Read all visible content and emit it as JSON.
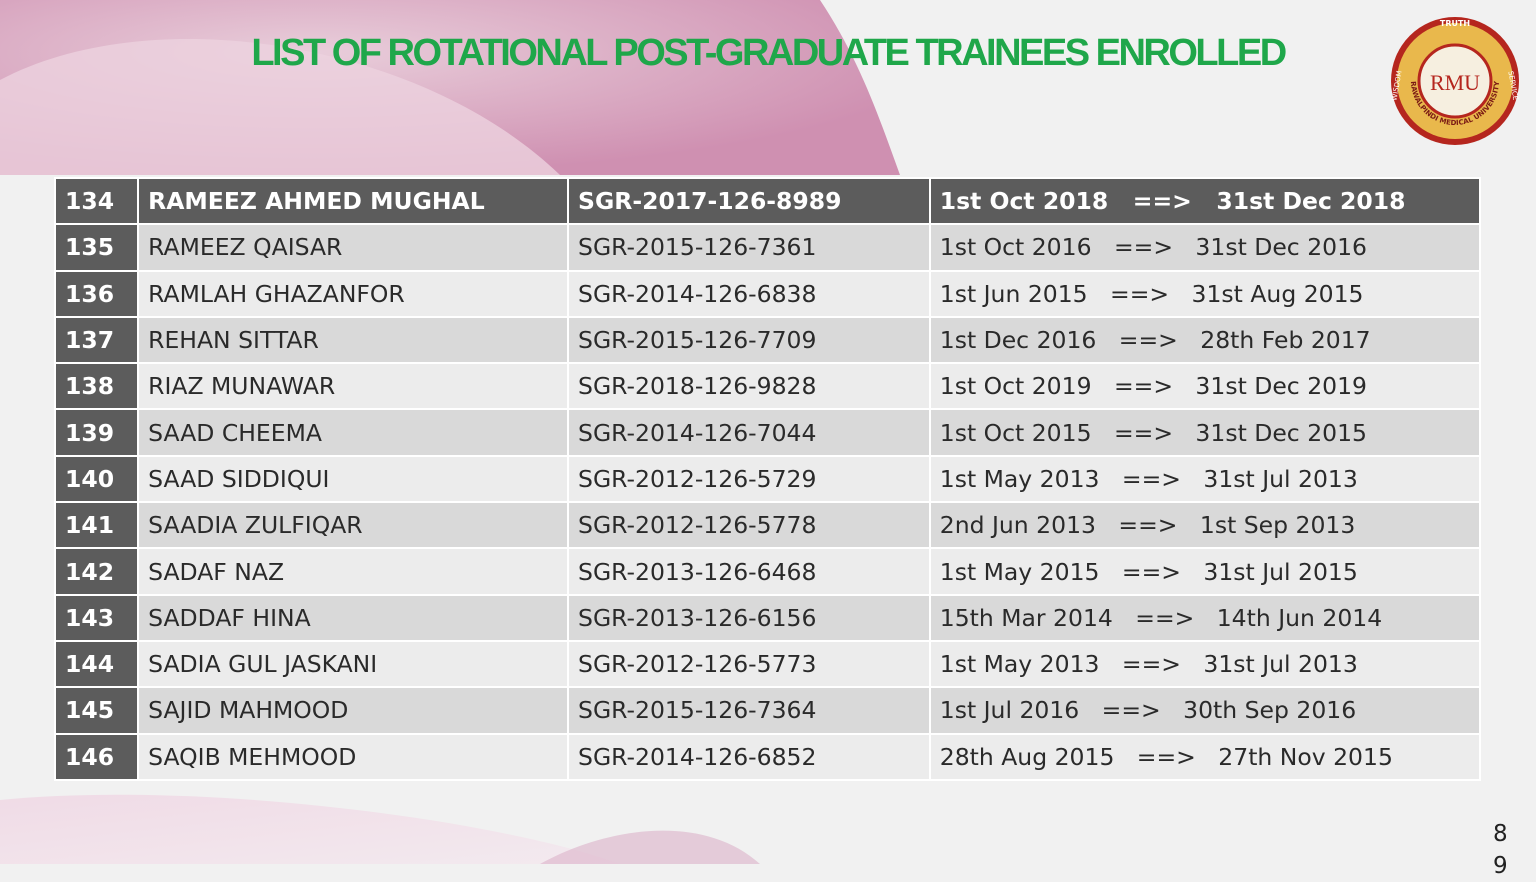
{
  "header": {
    "title": "LIST OF ROTATIONAL POST-GRADUATE TRAINEES ENROLLED"
  },
  "logo": {
    "top": "TRUTH",
    "left": "WISDOM",
    "right": "SERVICE",
    "ring": "RAWALPINDI MEDICAL UNIVERSITY",
    "initials": "RMU"
  },
  "table": {
    "rows": [
      [
        "134",
        "RAMEEZ AHMED MUGHAL",
        "SGR-2017-126-8989",
        "1st Oct 2018   ==>   31st Dec 2018"
      ],
      [
        "135",
        "RAMEEZ QAISAR",
        "SGR-2015-126-7361",
        "1st Oct 2016   ==>   31st Dec 2016"
      ],
      [
        "136",
        "RAMLAH GHAZANFOR",
        "SGR-2014-126-6838",
        "1st Jun 2015   ==>   31st Aug 2015"
      ],
      [
        "137",
        "REHAN SITTAR",
        "SGR-2015-126-7709",
        "1st Dec 2016   ==>   28th Feb 2017"
      ],
      [
        "138",
        "RIAZ MUNAWAR",
        "SGR-2018-126-9828",
        "1st Oct 2019   ==>   31st Dec 2019"
      ],
      [
        "139",
        "SAAD CHEEMA",
        "SGR-2014-126-7044",
        "1st Oct 2015   ==>   31st Dec 2015"
      ],
      [
        "140",
        "SAAD SIDDIQUI",
        "SGR-2012-126-5729",
        "1st May 2013   ==>   31st Jul 2013"
      ],
      [
        "141",
        "SAADIA ZULFIQAR",
        "SGR-2012-126-5778",
        "2nd Jun 2013   ==>   1st Sep 2013"
      ],
      [
        "142",
        "SADAF NAZ",
        "SGR-2013-126-6468",
        "1st May 2015   ==>   31st Jul 2015"
      ],
      [
        "143",
        "SADDAF HINA",
        "SGR-2013-126-6156",
        "15th Mar 2014   ==>   14th Jun 2014"
      ],
      [
        "144",
        "SADIA GUL JASKANI",
        "SGR-2012-126-5773",
        "1st May 2013   ==>   31st Jul 2013"
      ],
      [
        "145",
        "SAJID MAHMOOD",
        "SGR-2015-126-7364",
        "1st Jul 2016   ==>   30th Sep 2016"
      ],
      [
        "146",
        "SAQIB MEHMOOD",
        "SGR-2014-126-6852",
        "28th Aug 2015   ==>   27th Nov 2015"
      ]
    ]
  },
  "footer": {
    "page": "89"
  }
}
